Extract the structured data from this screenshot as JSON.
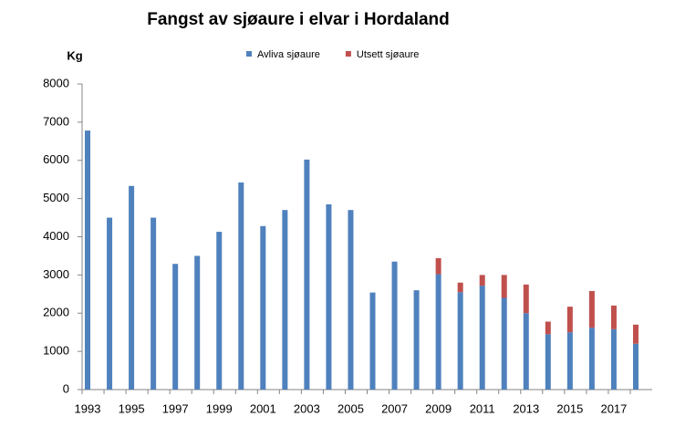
{
  "chart_data": {
    "type": "stacked-bar",
    "title": "Fangst av sjøaure i elvar i Hordaland",
    "y_label": "Kg",
    "categories": [
      "1993",
      null,
      "1995",
      null,
      "1997",
      null,
      "1999",
      null,
      "2001",
      null,
      "2003",
      null,
      "2005",
      null,
      "2007",
      null,
      "2009",
      null,
      "2011",
      null,
      "2013",
      null,
      "2015",
      null,
      "2017",
      null
    ],
    "series": [
      {
        "name": "Avliva sjøaure",
        "color": "#4f81bd",
        "values": [
          6780,
          4500,
          5330,
          4500,
          3290,
          3500,
          4130,
          5420,
          4280,
          4700,
          6020,
          4850,
          4700,
          2540,
          3350,
          2600,
          3020,
          2550,
          2720,
          2400,
          2000,
          1450,
          1500,
          1620,
          1580,
          1200
        ]
      },
      {
        "name": "Utsett sjøaure",
        "color": "#c0504d",
        "values": [
          0,
          0,
          0,
          0,
          0,
          0,
          0,
          0,
          0,
          0,
          0,
          0,
          0,
          0,
          0,
          0,
          420,
          250,
          280,
          600,
          750,
          330,
          670,
          960,
          620,
          500
        ]
      }
    ],
    "ylim": [
      0,
      8000
    ],
    "yticks": [
      0,
      1000,
      2000,
      3000,
      4000,
      5000,
      6000,
      7000,
      8000
    ],
    "grid": false,
    "legend": "top"
  }
}
